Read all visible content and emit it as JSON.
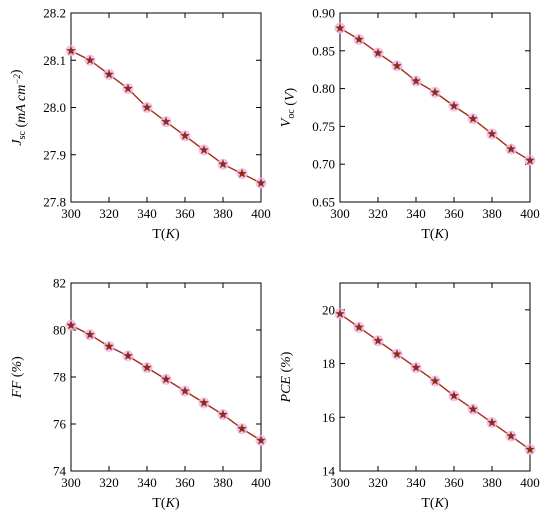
{
  "colors": {
    "line": "#a52a1a",
    "marker": "#8b2c1c",
    "marker_halo": "#f2b8e4",
    "axis": "#000000"
  },
  "chart_data": [
    {
      "id": "jsc",
      "type": "line",
      "marker": "star",
      "x": [
        300,
        310,
        320,
        330,
        340,
        350,
        360,
        370,
        380,
        390,
        400
      ],
      "values": [
        28.12,
        28.1,
        28.07,
        28.04,
        28.0,
        27.97,
        27.94,
        27.91,
        27.88,
        27.86,
        27.84
      ],
      "xlim": [
        300,
        400
      ],
      "ylim": [
        27.8,
        28.2
      ],
      "xticks": [
        300,
        320,
        340,
        360,
        380,
        400
      ],
      "yticks": [
        27.8,
        27.9,
        28.0,
        28.1,
        28.2
      ],
      "ytick_labels": [
        "27.8",
        "27.9",
        "28.0",
        "28.1",
        "28.2"
      ],
      "xlabel": {
        "main": "T(",
        "ital": "K",
        "tail": ")"
      },
      "ylabel": {
        "sym": "J",
        "sub": "sc",
        "unit_open": " (",
        "unit": "mA cm",
        "sup": "−2",
        "unit_close": ")"
      }
    },
    {
      "id": "voc",
      "type": "line",
      "marker": "star",
      "x": [
        300,
        310,
        320,
        330,
        340,
        350,
        360,
        370,
        380,
        390,
        400
      ],
      "values": [
        0.88,
        0.865,
        0.847,
        0.83,
        0.81,
        0.795,
        0.777,
        0.76,
        0.74,
        0.72,
        0.705
      ],
      "xlim": [
        300,
        400
      ],
      "ylim": [
        0.65,
        0.9
      ],
      "xticks": [
        300,
        320,
        340,
        360,
        380,
        400
      ],
      "yticks": [
        0.65,
        0.7,
        0.75,
        0.8,
        0.85,
        0.9
      ],
      "ytick_labels": [
        "0.65",
        "0.70",
        "0.75",
        "0.80",
        "0.85",
        "0.90"
      ],
      "xlabel": {
        "main": "T(",
        "ital": "K",
        "tail": ")"
      },
      "ylabel": {
        "sym": "V",
        "sub": "oc",
        "unit_open": " (",
        "unit": "V",
        "sup": "",
        "unit_close": ")"
      }
    },
    {
      "id": "ff",
      "type": "line",
      "marker": "star",
      "x": [
        300,
        310,
        320,
        330,
        340,
        350,
        360,
        370,
        380,
        390,
        400
      ],
      "values": [
        80.2,
        79.8,
        79.3,
        78.9,
        78.4,
        77.9,
        77.4,
        76.9,
        76.4,
        75.8,
        75.3
      ],
      "xlim": [
        300,
        400
      ],
      "ylim": [
        74,
        82
      ],
      "xticks": [
        300,
        320,
        340,
        360,
        380,
        400
      ],
      "yticks": [
        74,
        76,
        78,
        80,
        82
      ],
      "ytick_labels": [
        "74",
        "76",
        "78",
        "80",
        "82"
      ],
      "xlabel": {
        "main": "T(",
        "ital": "K",
        "tail": ")"
      },
      "ylabel": {
        "sym": "FF",
        "sub": "",
        "unit_open": " (",
        "unit": "%",
        "sup": "",
        "unit_close": ")"
      }
    },
    {
      "id": "pce",
      "type": "line",
      "marker": "star",
      "x": [
        300,
        310,
        320,
        330,
        340,
        350,
        360,
        370,
        380,
        390,
        400
      ],
      "values": [
        19.85,
        19.35,
        18.85,
        18.35,
        17.85,
        17.35,
        16.8,
        16.3,
        15.8,
        15.3,
        14.8
      ],
      "xlim": [
        300,
        400
      ],
      "ylim": [
        14,
        21
      ],
      "xticks": [
        300,
        320,
        340,
        360,
        380,
        400
      ],
      "yticks": [
        14,
        16,
        18,
        20
      ],
      "ytick_labels": [
        "14",
        "16",
        "18",
        "20"
      ],
      "xlabel": {
        "main": "T(",
        "ital": "K",
        "tail": ")"
      },
      "ylabel": {
        "sym": "PCE",
        "sub": "",
        "unit_open": " (",
        "unit": "%",
        "sup": "",
        "unit_close": ")"
      }
    }
  ]
}
